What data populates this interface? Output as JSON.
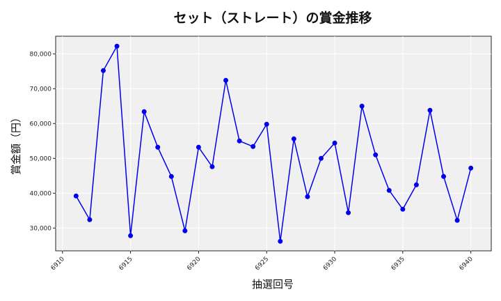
{
  "chart_data": {
    "type": "line",
    "title": "セット（ストレート）の賞金推移",
    "xlabel": "抽選回号",
    "ylabel": "賞金額（円）",
    "x": [
      6911,
      6912,
      6913,
      6914,
      6915,
      6916,
      6917,
      6918,
      6919,
      6920,
      6921,
      6922,
      6923,
      6924,
      6925,
      6926,
      6927,
      6928,
      6929,
      6930,
      6931,
      6932,
      6933,
      6934,
      6935,
      6936,
      6937,
      6938,
      6939,
      6940
    ],
    "series": [
      {
        "values": [
          39200,
          32400,
          75200,
          82200,
          27800,
          63400,
          53200,
          44800,
          29200,
          53200,
          47600,
          72400,
          55000,
          53400,
          59800,
          26200,
          55600,
          39000,
          50000,
          54400,
          34400,
          65000,
          51000,
          40800,
          35400,
          42400,
          63800,
          44800,
          32200,
          47200
        ]
      }
    ],
    "xticks": [
      6910,
      6915,
      6920,
      6925,
      6930,
      6935,
      6940
    ],
    "yticks": [
      30000,
      40000,
      50000,
      60000,
      70000,
      80000
    ],
    "ytick_labels": [
      "30,000",
      "40,000",
      "50,000",
      "60,000",
      "70,000",
      "80,000"
    ],
    "xlim": [
      6909.5,
      6941.5
    ],
    "ylim": [
      23460,
      85060
    ],
    "grid": true,
    "colors": {
      "line": "#0000ee",
      "background": "#f0f0f0",
      "grid": "#ffffff"
    }
  }
}
